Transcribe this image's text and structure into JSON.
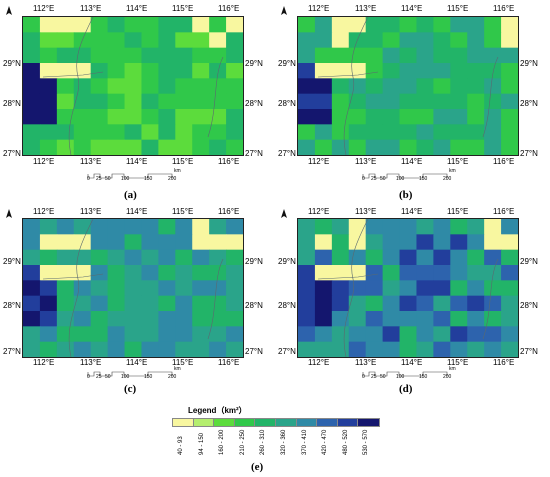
{
  "panels": [
    {
      "id": "a",
      "label": "(a)",
      "scale": [
        "0",
        "25",
        "50",
        "100",
        "150",
        "200",
        "km"
      ]
    },
    {
      "id": "b",
      "label": "(b)",
      "scale": [
        "0",
        "25",
        "50",
        "100",
        "150",
        "200",
        "km"
      ]
    },
    {
      "id": "c",
      "label": "(c)",
      "scale": [
        "0",
        "25",
        "50",
        "100",
        "150",
        "200",
        "km"
      ]
    },
    {
      "id": "d",
      "label": "(d)",
      "scale": [
        "0",
        "25",
        "50",
        "100",
        "150",
        "200",
        "km"
      ]
    }
  ],
  "lon_ticks": [
    "112°E",
    "113°E",
    "114°E",
    "115°E",
    "116°E"
  ],
  "lat_ticks": [
    "29°N",
    "28°N",
    "27°N"
  ],
  "legend": {
    "title": "Legend（km²）",
    "label": "(e)",
    "classes": [
      {
        "range": "40 - 93",
        "color": "#f8f7a0"
      },
      {
        "range": "94 - 150",
        "color": "#b4ee6e"
      },
      {
        "range": "160 - 200",
        "color": "#5cdc3c"
      },
      {
        "range": "210 - 250",
        "color": "#30c84a"
      },
      {
        "range": "260 - 310",
        "color": "#22b468"
      },
      {
        "range": "320 - 360",
        "color": "#2aa48a"
      },
      {
        "range": "370 - 410",
        "color": "#2f8aa6"
      },
      {
        "range": "420 - 470",
        "color": "#2d63ad"
      },
      {
        "range": "480 - 520",
        "color": "#223e9c"
      },
      {
        "range": "530 - 570",
        "color": "#14166e"
      }
    ]
  }
}
